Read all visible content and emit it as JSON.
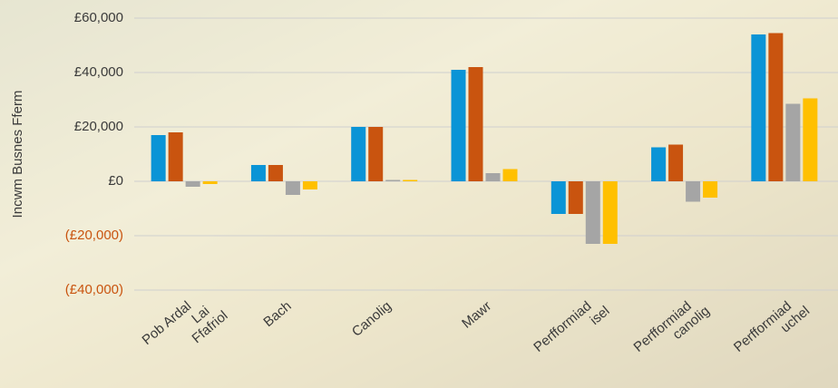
{
  "chart_data": {
    "type": "bar",
    "y_label": "Incwm Busnes Fferm",
    "categories": [
      [
        "Pob Ardal",
        "Lai",
        "Ffafriol"
      ],
      [
        "Bach"
      ],
      [
        "Canolig"
      ],
      [
        "Mawr"
      ],
      [
        "Perfformiad",
        "isel"
      ],
      [
        "Perfformiad",
        "canolig"
      ],
      [
        "Perfformiad",
        "uchel"
      ]
    ],
    "series": [
      {
        "color": "#0a94d6",
        "values": [
          17000,
          6000,
          20000,
          41000,
          -12000,
          12500,
          54000
        ]
      },
      {
        "color": "#c9540f",
        "values": [
          18000,
          6000,
          20000,
          42000,
          -12000,
          13500,
          54500
        ]
      },
      {
        "color": "#a5a5a5",
        "values": [
          -2000,
          -5000,
          500,
          3000,
          -23000,
          -7500,
          28500
        ]
      },
      {
        "color": "#ffc000",
        "values": [
          -1000,
          -3000,
          500,
          4500,
          -23000,
          -6000,
          30500
        ]
      }
    ],
    "ylim": [
      -40000,
      60000
    ],
    "yticks": [
      {
        "value": -40000,
        "label": "(£40,000)"
      },
      {
        "value": -20000,
        "label": "(£20,000)"
      },
      {
        "value": 0,
        "label": "£0"
      },
      {
        "value": 20000,
        "label": "£20,000"
      },
      {
        "value": 40000,
        "label": "£40,000"
      },
      {
        "value": 60000,
        "label": "£60,000"
      }
    ],
    "negative_label_color": "#c9540f",
    "grid": true
  }
}
